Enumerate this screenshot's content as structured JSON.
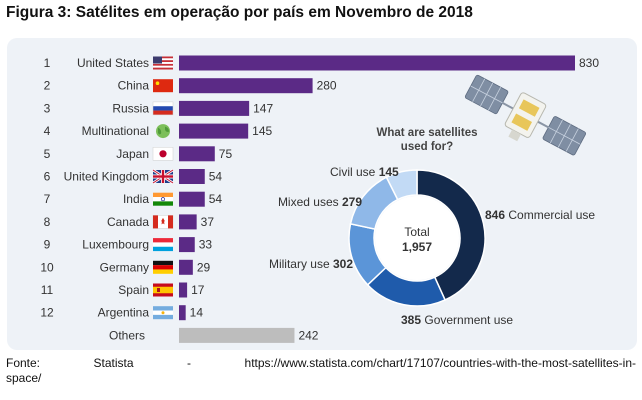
{
  "figure": {
    "title": "Figura 3: Satélites em operação por país em Novembro de 2018",
    "source_line1": "Fonte: Statista - https://www.statista.com/chart/17107/countries-with-the-most-satellites-in-",
    "source_line2": "space/"
  },
  "colors": {
    "bar": "#5b2a86",
    "others_bar": "#bdbdbd",
    "panel_bg": "#eef2f7"
  },
  "chart_data": [
    {
      "type": "bar",
      "orientation": "horizontal",
      "ranks": [
        "1",
        "2",
        "3",
        "4",
        "5",
        "6",
        "7",
        "8",
        "9",
        "10",
        "11",
        "12",
        ""
      ],
      "categories": [
        "United States",
        "China",
        "Russia",
        "Multinational",
        "Japan",
        "United Kingdom",
        "India",
        "Canada",
        "Luxembourg",
        "Germany",
        "Spain",
        "Argentina",
        "Others"
      ],
      "values": [
        830,
        280,
        147,
        145,
        75,
        54,
        54,
        37,
        33,
        29,
        17,
        14,
        242
      ],
      "flags": [
        "flag-us",
        "flag-cn",
        "flag-ru",
        "globe-icon",
        "flag-jp",
        "flag-uk",
        "flag-in",
        "flag-ca",
        "flag-lu",
        "flag-de",
        "flag-es",
        "flag-ar",
        ""
      ]
    },
    {
      "type": "pie",
      "donut": true,
      "title": "What are satellites used for?",
      "center_label": "Total",
      "center_value": "1,957",
      "slices": [
        {
          "label": "Commercial use",
          "value": 846,
          "color": "#13294b",
          "label_side": "right"
        },
        {
          "label": "Government use",
          "value": 385,
          "color": "#1f5bab",
          "label_side": "below"
        },
        {
          "label": "Military use",
          "value": 302,
          "color": "#5b95d8",
          "label_side": "left"
        },
        {
          "label": "Mixed uses",
          "value": 279,
          "color": "#8fb8e8",
          "label_side": "left"
        },
        {
          "label": "Civil use",
          "value": 145,
          "color": "#c2daf5",
          "label_side": "top"
        }
      ]
    }
  ]
}
